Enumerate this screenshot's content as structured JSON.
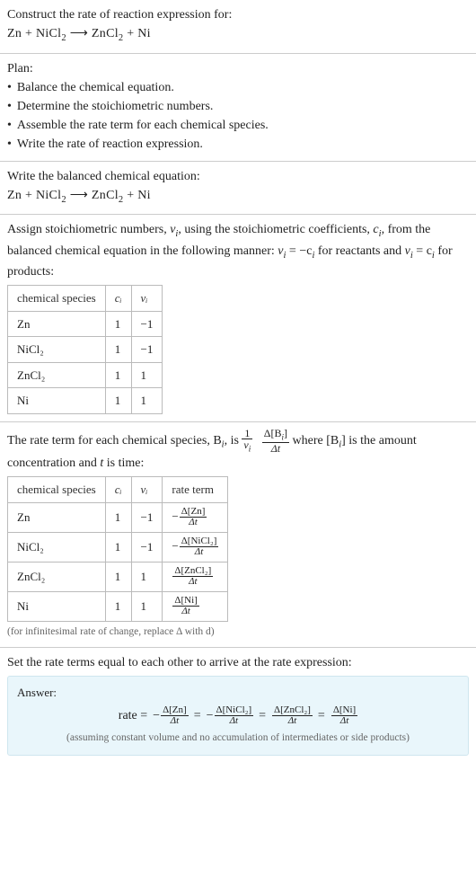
{
  "intro": {
    "heading": "Construct the rate of reaction expression for:",
    "equation_lhs": "Zn + NiCl",
    "equation_sub1": "2",
    "arrow": " ⟶ ",
    "equation_rhs": "ZnCl",
    "equation_sub2": "2",
    "equation_tail": " + Ni"
  },
  "plan": {
    "heading": "Plan:",
    "items": [
      "Balance the chemical equation.",
      "Determine the stoichiometric numbers.",
      "Assemble the rate term for each chemical species.",
      "Write the rate of reaction expression."
    ],
    "bullet": "•"
  },
  "balanced": {
    "heading": "Write the balanced chemical equation:",
    "equation_lhs": "Zn + NiCl",
    "equation_sub1": "2",
    "arrow": " ⟶ ",
    "equation_rhs": "ZnCl",
    "equation_sub2": "2",
    "equation_tail": " + Ni"
  },
  "assign": {
    "text_a": "Assign stoichiometric numbers, ",
    "nu_i": "ν",
    "sub_i": "i",
    "text_b": ", using the stoichiometric coefficients, ",
    "c_i": "c",
    "text_c": ", from the balanced chemical equation in the following manner: ",
    "rel1_a": "ν",
    "rel1_b": " = −c",
    "text_d": " for reactants and ",
    "rel2_a": "ν",
    "rel2_b": " = c",
    "text_e": " for products:",
    "table": {
      "headers": [
        "chemical species",
        "cᵢ",
        "νᵢ"
      ],
      "rows": [
        [
          "Zn",
          "1",
          "−1"
        ],
        [
          "NiCl₂",
          "1",
          "−1"
        ],
        [
          "ZnCl₂",
          "1",
          "1"
        ],
        [
          "Ni",
          "1",
          "1"
        ]
      ]
    }
  },
  "rateterm": {
    "text_a": "The rate term for each chemical species, B",
    "sub_i": "i",
    "text_b": ", is ",
    "frac1_num": "1",
    "frac1_den_a": "ν",
    "frac2_num_a": "Δ[B",
    "frac2_num_b": "]",
    "frac2_den": "Δt",
    "text_c": " where [B",
    "text_d": "] is the amount concentration and ",
    "t": "t",
    "text_e": " is time:",
    "table": {
      "headers": [
        "chemical species",
        "cᵢ",
        "νᵢ",
        "rate term"
      ],
      "rows": [
        {
          "sp": "Zn",
          "c": "1",
          "nu": "−1",
          "neg": "−",
          "num": "Δ[Zn]",
          "den": "Δt"
        },
        {
          "sp": "NiCl₂",
          "c": "1",
          "nu": "−1",
          "neg": "−",
          "num": "Δ[NiCl₂]",
          "den": "Δt"
        },
        {
          "sp": "ZnCl₂",
          "c": "1",
          "nu": "1",
          "neg": "",
          "num": "Δ[ZnCl₂]",
          "den": "Δt"
        },
        {
          "sp": "Ni",
          "c": "1",
          "nu": "1",
          "neg": "",
          "num": "Δ[Ni]",
          "den": "Δt"
        }
      ]
    },
    "note": "(for infinitesimal rate of change, replace Δ with d)"
  },
  "final": {
    "heading": "Set the rate terms equal to each other to arrive at the rate expression:",
    "answer_label": "Answer:",
    "rate_label": "rate =",
    "eq": " = ",
    "terms": [
      {
        "neg": "−",
        "num": "Δ[Zn]",
        "den": "Δt"
      },
      {
        "neg": "−",
        "num": "Δ[NiCl₂]",
        "den": "Δt"
      },
      {
        "neg": "",
        "num": "Δ[ZnCl₂]",
        "den": "Δt"
      },
      {
        "neg": "",
        "num": "Δ[Ni]",
        "den": "Δt"
      }
    ],
    "note": "(assuming constant volume and no accumulation of intermediates or side products)"
  }
}
